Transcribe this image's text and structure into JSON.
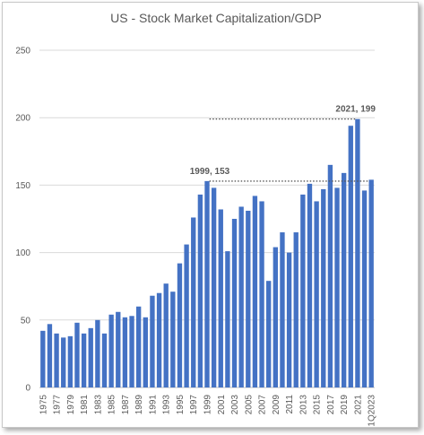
{
  "chart_data": {
    "type": "bar",
    "title": "US - Stock Market Capitalization/GDP",
    "xlabel": "",
    "ylabel": "",
    "ylim": [
      0,
      250
    ],
    "yticks": [
      0,
      50,
      100,
      150,
      200,
      250
    ],
    "grid": true,
    "bar_color": "#4472c4",
    "categories": [
      "1975",
      "1976",
      "1977",
      "1978",
      "1979",
      "1980",
      "1981",
      "1982",
      "1983",
      "1984",
      "1985",
      "1986",
      "1987",
      "1988",
      "1989",
      "1990",
      "1991",
      "1992",
      "1993",
      "1994",
      "1995",
      "1996",
      "1997",
      "1998",
      "1999",
      "2000",
      "2001",
      "2002",
      "2003",
      "2004",
      "2005",
      "2006",
      "2007",
      "2008",
      "2009",
      "2010",
      "2011",
      "2012",
      "2013",
      "2014",
      "2015",
      "2016",
      "2017",
      "2018",
      "2019",
      "2020",
      "2021",
      "2022",
      "1Q2023"
    ],
    "values": [
      42,
      47,
      40,
      37,
      38,
      48,
      40,
      44,
      50,
      40,
      54,
      56,
      52,
      53,
      60,
      52,
      68,
      70,
      77,
      71,
      92,
      106,
      126,
      143,
      153,
      148,
      132,
      101,
      125,
      134,
      131,
      142,
      138,
      79,
      104,
      115,
      100,
      115,
      143,
      151,
      138,
      147,
      165,
      148,
      159,
      194,
      199,
      146,
      154
    ],
    "annotations": [
      {
        "text": "1999, 153",
        "from_category": "1999",
        "to_category": "1Q2023",
        "value": 153
      },
      {
        "text": "2021, 199",
        "from_category": "1999",
        "to_category": "2021",
        "value": 199
      }
    ]
  }
}
